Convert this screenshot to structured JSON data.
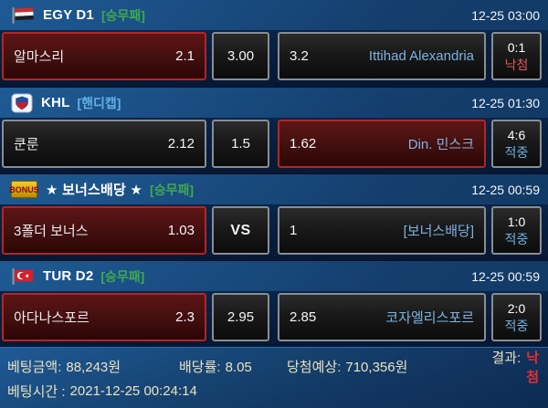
{
  "colors": {
    "selected_border": "#b22626",
    "unselected_border": "#888e94",
    "market_green": "#3fa94d",
    "market_blue": "#64b0e8",
    "away_team_blue": "#7db4e2",
    "result_win_blue": "#6cb2e4",
    "result_lose_red": "#e05858",
    "footer_text_cream": "#eae3c0",
    "footer_result_red": "#e62e2e",
    "header_bg_blue": "#1a4d82",
    "row_bg_navy": "#081d3c"
  },
  "sections": [
    {
      "icon": "egypt-flag-icon",
      "league": "EGY D1",
      "market": "[승무패]",
      "market_style": "green",
      "datetime": "12-25 03:00",
      "home": {
        "name": "알마스리",
        "odds": "2.1",
        "selected": true
      },
      "draw": {
        "odds": "3.00",
        "selected": false,
        "vs": false
      },
      "away": {
        "odds": "3.2",
        "name": "Ittihad Alexandria",
        "selected": false
      },
      "score": "0:1",
      "result": "낙첨",
      "result_status": "lose"
    },
    {
      "icon": "khl-logo-icon",
      "league": "KHL",
      "market": "[핸디캡]",
      "market_style": "blue",
      "datetime": "12-25 01:30",
      "home": {
        "name": "쿤룬",
        "odds": "2.12",
        "selected": false
      },
      "draw": {
        "odds": "1.5",
        "selected": false,
        "vs": false
      },
      "away": {
        "odds": "1.62",
        "name": "Din. 민스크",
        "selected": true
      },
      "score": "4:6",
      "result": "적중",
      "result_status": "win"
    },
    {
      "icon": "bonus-badge-icon",
      "icon_text": "BONUS",
      "league": "★ 보너스배당 ★",
      "market": "[승무패]",
      "market_style": "green",
      "datetime": "12-25 00:59",
      "home": {
        "name": "3폴더 보너스",
        "odds": "1.03",
        "selected": true
      },
      "draw": {
        "odds": "VS",
        "selected": false,
        "vs": true
      },
      "away": {
        "odds": "1",
        "name": "[보너스배당]",
        "selected": false
      },
      "score": "1:0",
      "result": "적중",
      "result_status": "win"
    },
    {
      "icon": "turkey-flag-icon",
      "league": "TUR D2",
      "market": "[승무패]",
      "market_style": "green",
      "datetime": "12-25 00:59",
      "home": {
        "name": "아다나스포르",
        "odds": "2.3",
        "selected": true
      },
      "draw": {
        "odds": "2.95",
        "selected": false,
        "vs": false
      },
      "away": {
        "odds": "2.85",
        "name": "코자엘리스포르",
        "selected": false
      },
      "score": "2:0",
      "result": "적중",
      "result_status": "win"
    }
  ],
  "footer": {
    "bet_amount_label": "베팅금액:",
    "bet_amount_value": "88,243원",
    "odds_label": "배당률:",
    "odds_value": "8.05",
    "expected_label": "당첨예상:",
    "expected_value": "710,356원",
    "result_label": "결과:",
    "result_value": "낙첨",
    "bet_time_label": "베팅시간 :",
    "bet_time_value": "2021-12-25 00:24:14"
  }
}
